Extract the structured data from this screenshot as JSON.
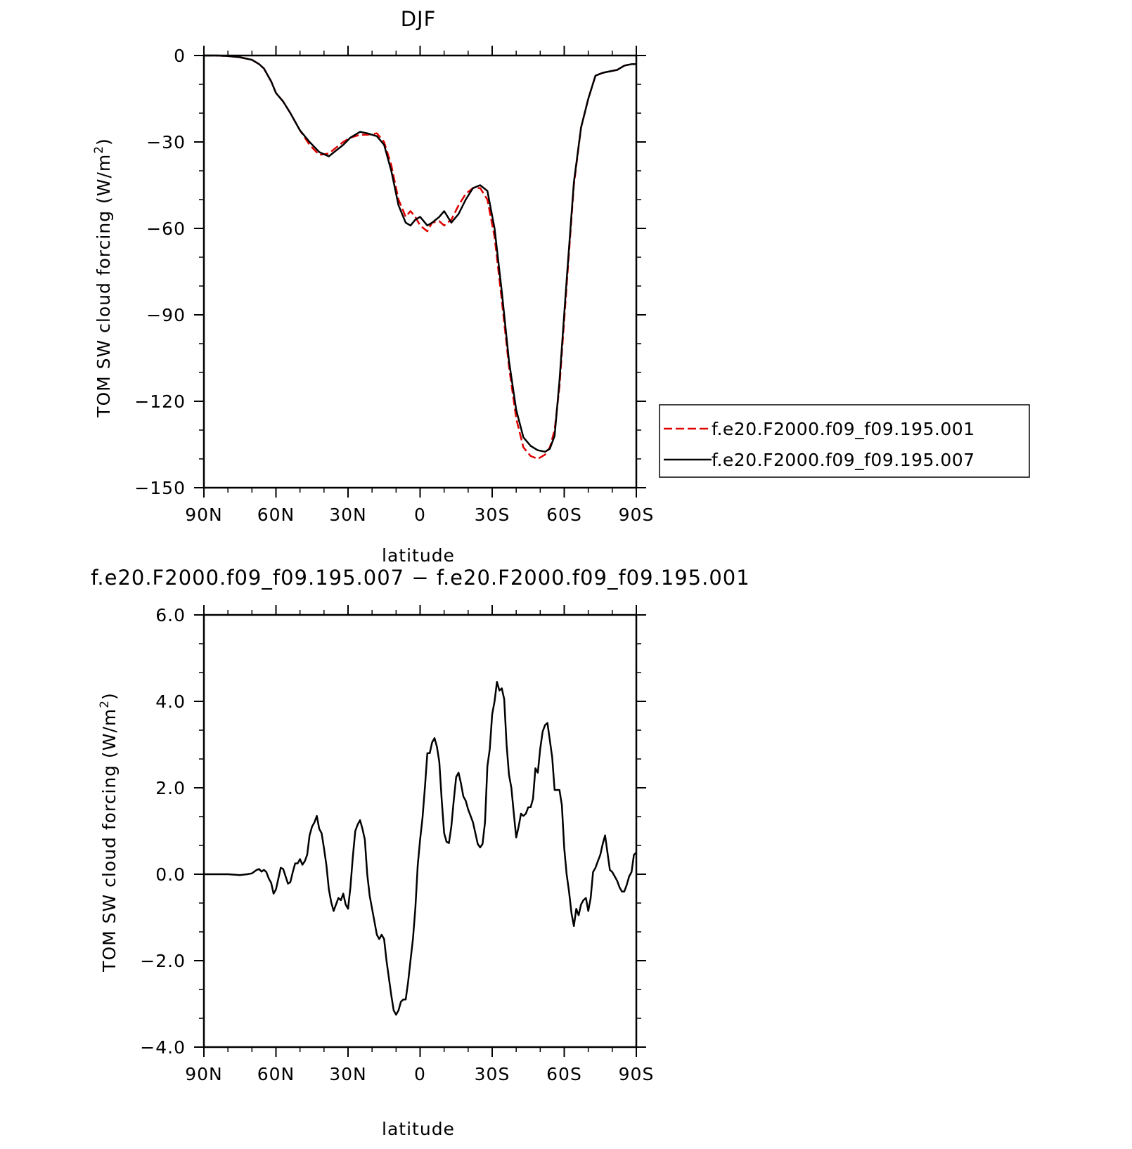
{
  "chart_data": [
    {
      "type": "line",
      "title": "DJF",
      "xlabel": "latitude",
      "ylabel": "TOM SW cloud forcing (W/m²)",
      "ylabel_main": "TOM SW cloud forcing (W/m",
      "ylabel_sup": "2",
      "ylabel_end": ")",
      "xlim": [
        90,
        -90
      ],
      "ylim": [
        -150,
        0
      ],
      "x_ticks": [
        90,
        60,
        30,
        0,
        -30,
        -60,
        -90
      ],
      "x_tick_labels": [
        "90N",
        "60N",
        "30N",
        "0",
        "30S",
        "60S",
        "90S"
      ],
      "y_ticks": [
        0,
        -30,
        -60,
        -90,
        -120,
        -150
      ],
      "y_tick_labels": [
        "0",
        "−30",
        "−60",
        "−90",
        "−120",
        "−150"
      ],
      "legend_position": "right",
      "series": [
        {
          "name": "f.e20.F2000.f09_f09.195.001",
          "color": "#e00000",
          "dash": "dashed",
          "x": [
            90,
            85,
            80,
            75,
            70,
            67,
            65,
            62,
            60,
            57,
            54,
            50,
            46,
            42,
            38,
            35,
            32,
            29,
            25,
            22,
            18,
            15,
            12,
            9,
            6,
            4,
            2,
            0,
            -3,
            -5,
            -8,
            -10,
            -13,
            -16,
            -19,
            -22,
            -25,
            -28,
            -31,
            -34,
            -37,
            -40,
            -43,
            -46,
            -49,
            -52,
            -54,
            -56,
            -58,
            -61,
            -64,
            -67,
            -70,
            -73,
            -76,
            -79,
            -82,
            -85,
            -88,
            -90
          ],
          "y": [
            0,
            0,
            -0.2,
            -0.6,
            -1.5,
            -3,
            -4.5,
            -9,
            -13,
            -16,
            -20,
            -26,
            -31,
            -34.5,
            -34,
            -32,
            -30,
            -28.5,
            -27.5,
            -27.5,
            -27,
            -30,
            -38,
            -50,
            -56,
            -54,
            -56,
            -59,
            -61,
            -58,
            -57.5,
            -59,
            -57,
            -52,
            -48,
            -46,
            -46,
            -50,
            -63,
            -85,
            -108,
            -126,
            -136,
            -139,
            -140,
            -138.5,
            -136,
            -130,
            -115,
            -80,
            -45,
            -25,
            -15,
            -7,
            -6,
            -5.5,
            -5,
            -3.5,
            -3,
            -3
          ]
        },
        {
          "name": "f.e20.F2000.f09_f09.195.007",
          "color": "#000000",
          "dash": "solid",
          "x": [
            90,
            85,
            80,
            75,
            70,
            67,
            65,
            62,
            60,
            57,
            54,
            50,
            46,
            42,
            38,
            35,
            32,
            29,
            25,
            22,
            18,
            15,
            12,
            9,
            6,
            4,
            2,
            0,
            -3,
            -5,
            -8,
            -10,
            -13,
            -16,
            -19,
            -22,
            -25,
            -28,
            -31,
            -34,
            -37,
            -40,
            -43,
            -46,
            -49,
            -52,
            -54,
            -56,
            -58,
            -61,
            -64,
            -67,
            -70,
            -73,
            -76,
            -79,
            -82,
            -85,
            -88,
            -90
          ],
          "y": [
            0,
            0,
            -0.2,
            -0.6,
            -1.5,
            -3,
            -4.5,
            -9,
            -13,
            -16,
            -20,
            -26,
            -30,
            -33.5,
            -35,
            -33,
            -31,
            -28.5,
            -26.5,
            -27,
            -28,
            -31,
            -40,
            -52,
            -58,
            -59,
            -57,
            -56,
            -59,
            -58,
            -56,
            -54,
            -58,
            -55,
            -50,
            -46,
            -45,
            -47,
            -60,
            -82,
            -106,
            -123,
            -132.5,
            -135.5,
            -137,
            -137.5,
            -136.5,
            -132,
            -113,
            -78,
            -44,
            -25,
            -15,
            -7,
            -6,
            -5.5,
            -5,
            -3.5,
            -3,
            -3
          ]
        }
      ]
    },
    {
      "type": "line",
      "title": "f.e20.F2000.f09_f09.195.007 − f.e20.F2000.f09_f09.195.001",
      "xlabel": "latitude",
      "ylabel": "TOM SW cloud forcing (W/m²)",
      "ylabel_main": "TOM SW cloud forcing (W/m",
      "ylabel_sup": "2",
      "ylabel_end": ")",
      "xlim": [
        90,
        -90
      ],
      "ylim": [
        -4,
        6
      ],
      "x_ticks": [
        90,
        60,
        30,
        0,
        -30,
        -60,
        -90
      ],
      "x_tick_labels": [
        "90N",
        "60N",
        "30N",
        "0",
        "30S",
        "60S",
        "90S"
      ],
      "y_ticks": [
        6,
        4,
        2,
        0,
        -2,
        -4
      ],
      "y_tick_labels": [
        "6.0",
        "4.0",
        "2.0",
        "0.0",
        "−2.0",
        "−4.0"
      ],
      "series": [
        {
          "color": "#000000",
          "dash": "solid",
          "x": [
            90,
            85,
            80,
            75,
            72,
            70,
            68,
            67,
            66,
            65,
            64,
            63,
            62,
            61,
            60,
            59,
            58,
            57,
            56,
            55,
            54,
            53,
            52,
            51,
            50,
            49,
            48,
            47,
            46,
            45,
            44,
            43,
            42,
            41,
            40,
            39,
            38,
            37,
            36,
            35,
            34,
            33,
            32,
            31,
            30,
            29,
            28,
            27,
            26,
            25,
            24,
            23,
            22,
            21,
            20,
            19,
            18,
            17,
            16,
            15,
            14,
            13,
            12,
            11,
            10,
            9,
            8,
            7,
            6,
            5,
            4,
            3,
            2,
            1,
            0,
            -1,
            -2,
            -3,
            -4,
            -5,
            -6,
            -7,
            -8,
            -9,
            -10,
            -11,
            -12,
            -13,
            -14,
            -15,
            -16,
            -17,
            -18,
            -19,
            -20,
            -21,
            -22,
            -23,
            -24,
            -25,
            -26,
            -27,
            -28,
            -29,
            -30,
            -31,
            -32,
            -33,
            -34,
            -35,
            -36,
            -37,
            -38,
            -39,
            -40,
            -41,
            -42,
            -43,
            -44,
            -45,
            -46,
            -47,
            -48,
            -49,
            -50,
            -51,
            -52,
            -53,
            -54,
            -55,
            -56,
            -57,
            -58,
            -59,
            -60,
            -61,
            -62,
            -63,
            -64,
            -65,
            -66,
            -67,
            -68,
            -69,
            -70,
            -71,
            -72,
            -73,
            -74,
            -75,
            -76,
            -77,
            -78,
            -79,
            -80,
            -81,
            -82,
            -83,
            -84,
            -85,
            -86,
            -87,
            -88,
            -89,
            -90
          ],
          "y": [
            0,
            0,
            0,
            -0.02,
            0,
            0.02,
            0.1,
            0.12,
            0.06,
            0.1,
            0.05,
            -0.1,
            -0.2,
            -0.45,
            -0.35,
            -0.1,
            0.15,
            0.12,
            -0.05,
            -0.22,
            -0.18,
            0.05,
            0.25,
            0.25,
            0.35,
            0.22,
            0.3,
            0.45,
            0.9,
            1.1,
            1.2,
            1.35,
            1.05,
            0.95,
            0.6,
            0.2,
            -0.35,
            -0.65,
            -0.85,
            -0.7,
            -0.55,
            -0.6,
            -0.45,
            -0.7,
            -0.8,
            -0.3,
            0.4,
            1.0,
            1.15,
            1.25,
            1.05,
            0.8,
            0.0,
            -0.5,
            -0.8,
            -1.1,
            -1.4,
            -1.5,
            -1.4,
            -1.5,
            -2.0,
            -2.4,
            -2.8,
            -3.15,
            -3.25,
            -3.15,
            -2.95,
            -2.9,
            -2.9,
            -2.5,
            -2.0,
            -1.5,
            -0.8,
            0.2,
            0.8,
            1.3,
            2.0,
            2.8,
            2.8,
            3.05,
            3.15,
            2.95,
            2.6,
            1.7,
            0.95,
            0.75,
            0.72,
            1.1,
            1.7,
            2.25,
            2.35,
            2.1,
            1.8,
            1.7,
            1.5,
            1.35,
            1.2,
            0.95,
            0.7,
            0.62,
            0.7,
            1.2,
            2.5,
            2.9,
            3.7,
            4.0,
            4.45,
            4.25,
            4.3,
            4.05,
            3.0,
            2.3,
            2.0,
            1.4,
            0.85,
            1.1,
            1.4,
            1.35,
            1.4,
            1.55,
            1.55,
            1.75,
            2.45,
            2.35,
            2.9,
            3.3,
            3.45,
            3.5,
            3.1,
            2.7,
            1.95,
            1.95,
            1.95,
            1.6,
            0.6,
            0.0,
            -0.4,
            -0.9,
            -1.2,
            -0.8,
            -0.95,
            -0.7,
            -0.6,
            -0.55,
            -0.85,
            -0.55,
            0.05,
            0.15,
            0.3,
            0.45,
            0.7,
            0.9,
            0.5,
            0.1,
            0.05,
            -0.05,
            -0.15,
            -0.3,
            -0.4,
            -0.4,
            -0.25,
            -0.05,
            0.05,
            0.45,
            0.5
          ]
        }
      ]
    }
  ]
}
